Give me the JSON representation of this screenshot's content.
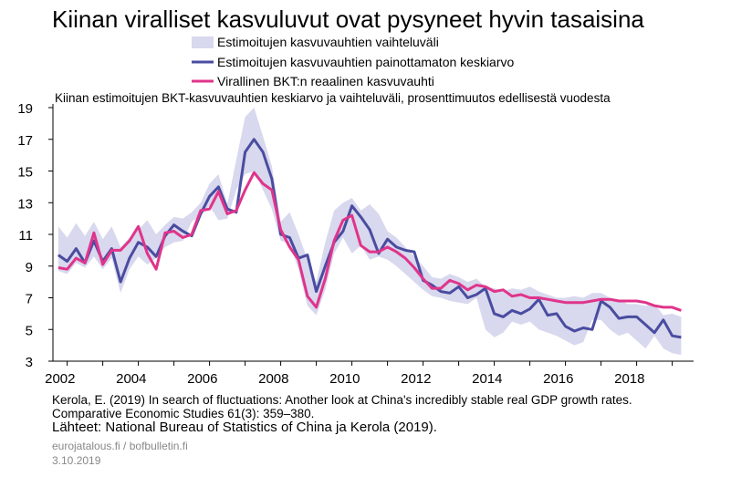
{
  "title": "Kiinan viralliset kasvuluvut ovat pysyneet hyvin tasaisina",
  "legend": [
    {
      "name": "Estimoitujen kasvuvauhtien vaihteluväli",
      "kind": "band"
    },
    {
      "name": "Estimoitujen kasvuvauhtien painottamaton keskiarvo",
      "kind": "line"
    },
    {
      "name": "Virallinen BKT:n reaalinen kasvuvauhti",
      "kind": "line"
    }
  ],
  "subtitle": "Kiinan estimoitujen BKT-kasvuvauhtien keskiarvo ja vaihteluväli, prosenttimuutos edellisestä vuodesta",
  "reference_line1": "Kerola, E. (2019) In search of fluctuations: Another look at China's incredibly stable real GDP growth rates.",
  "reference_line2": "Comparative Economic Studies 61(3): 359–380.",
  "sources": "Lähteet: National Bureau of Statistics of China ja Kerola (2019).",
  "footer_site": "eurojatalous.fi  / bofbulletin.fi",
  "footer_date": "3.10.2019",
  "colors": {
    "band": "#d8d8ee",
    "mean": "#4a4ca0",
    "official": "#e0348a",
    "axis": "#000000"
  },
  "chart_data": {
    "type": "line",
    "title": "Kiinan estimoitujen BKT-kasvuvauhtien keskiarvo ja vaihteluväli, prosenttimuutos edellisestä vuodesta",
    "xlabel": "",
    "ylabel": "",
    "x_ticks": [
      "2002",
      "2004",
      "2006",
      "2008",
      "2010",
      "2012",
      "2014",
      "2016",
      "2018"
    ],
    "y_ticks": [
      3,
      5,
      7,
      9,
      11,
      13,
      15,
      17,
      19
    ],
    "xlim": [
      2001.6,
      2019.6
    ],
    "ylim": [
      3,
      19
    ],
    "grid": false,
    "x": [
      2001.75,
      2002.0,
      2002.25,
      2002.5,
      2002.75,
      2003.0,
      2003.25,
      2003.5,
      2003.75,
      2004.0,
      2004.25,
      2004.5,
      2004.75,
      2005.0,
      2005.25,
      2005.5,
      2005.75,
      2006.0,
      2006.25,
      2006.5,
      2006.75,
      2007.0,
      2007.25,
      2007.5,
      2007.75,
      2008.0,
      2008.25,
      2008.5,
      2008.75,
      2009.0,
      2009.25,
      2009.5,
      2009.75,
      2010.0,
      2010.25,
      2010.5,
      2010.75,
      2011.0,
      2011.25,
      2011.5,
      2011.75,
      2012.0,
      2012.25,
      2012.5,
      2012.75,
      2013.0,
      2013.25,
      2013.5,
      2013.75,
      2014.0,
      2014.25,
      2014.5,
      2014.75,
      2015.0,
      2015.25,
      2015.5,
      2015.75,
      2016.0,
      2016.25,
      2016.5,
      2016.75,
      2017.0,
      2017.25,
      2017.5,
      2017.75,
      2018.0,
      2018.25,
      2018.5,
      2018.75,
      2019.0,
      2019.25
    ],
    "series": [
      {
        "name": "Estimoitujen kasvuvauhtien vaihteluväli",
        "kind": "band",
        "low": [
          8.7,
          8.5,
          9.2,
          8.9,
          9.6,
          8.8,
          9.5,
          7.3,
          8.8,
          9.6,
          9.1,
          9.5,
          10.2,
          10.5,
          10.6,
          11.8,
          12.2,
          12.8,
          11.9,
          12.0,
          13.8,
          14.8,
          15.0,
          13.8,
          12.6,
          10.6,
          10.4,
          8.8,
          6.5,
          5.9,
          7.5,
          9.8,
          10.8,
          9.8,
          10.3,
          9.4,
          9.6,
          9.4,
          9.0,
          8.5,
          8.0,
          7.5,
          7.1,
          7.0,
          6.8,
          6.7,
          6.6,
          7.0,
          5.0,
          4.5,
          4.8,
          5.5,
          5.3,
          5.5,
          5.0,
          4.8,
          4.6,
          4.3,
          4.0,
          4.2,
          5.6,
          5.6,
          5.0,
          4.6,
          4.8,
          4.3,
          3.8,
          4.6,
          3.8,
          3.5,
          3.4
        ],
        "high": [
          11.5,
          10.8,
          11.7,
          10.9,
          11.8,
          10.7,
          11.5,
          10.2,
          10.8,
          11.3,
          11.9,
          11.0,
          11.6,
          12.1,
          12.0,
          12.4,
          13.0,
          14.2,
          14.8,
          12.9,
          15.7,
          18.4,
          19.0,
          17.2,
          15.3,
          11.8,
          12.4,
          11.0,
          9.4,
          8.0,
          10.5,
          12.5,
          13.0,
          13.3,
          12.5,
          12.9,
          12.3,
          11.2,
          10.8,
          10.2,
          9.6,
          9.0,
          8.3,
          8.2,
          8.5,
          8.3,
          8.0,
          8.2,
          7.7,
          7.6,
          7.4,
          7.6,
          7.5,
          7.7,
          7.4,
          7.2,
          7.0,
          7.0,
          7.1,
          7.0,
          7.3,
          7.3,
          7.0,
          6.9,
          6.6,
          6.6,
          6.5,
          6.6,
          5.9,
          6.0,
          5.8
        ]
      },
      {
        "name": "Estimoitujen kasvuvauhtien painottamaton keskiarvo",
        "kind": "line",
        "values": [
          9.7,
          9.3,
          10.1,
          9.2,
          10.6,
          9.3,
          10.1,
          8.0,
          9.5,
          10.5,
          10.2,
          9.6,
          10.9,
          11.6,
          11.2,
          10.9,
          12.3,
          13.4,
          14.0,
          12.6,
          12.4,
          16.2,
          17.0,
          16.2,
          14.5,
          11.0,
          10.8,
          9.5,
          9.7,
          7.4,
          9.0,
          10.5,
          11.2,
          12.8,
          12.1,
          11.3,
          9.8,
          10.7,
          10.2,
          10.0,
          9.9,
          8.1,
          7.8,
          7.4,
          7.3,
          7.7,
          7.0,
          7.2,
          7.6,
          6.0,
          5.8,
          6.2,
          6.0,
          6.3,
          6.9,
          5.9,
          6.0,
          5.2,
          4.9,
          5.1,
          5.0,
          6.8,
          6.4,
          5.7,
          5.8,
          5.8,
          5.3,
          4.8,
          5.6,
          4.6,
          4.5
        ]
      },
      {
        "name": "Virallinen BKT:n reaalinen kasvuvauhti",
        "kind": "line",
        "values": [
          8.9,
          8.8,
          9.5,
          9.2,
          11.1,
          9.1,
          10.0,
          10.0,
          10.6,
          11.5,
          9.8,
          8.8,
          11.1,
          11.2,
          10.8,
          11.0,
          12.5,
          12.6,
          13.7,
          12.3,
          12.5,
          13.8,
          14.9,
          14.2,
          13.8,
          11.3,
          10.2,
          9.4,
          7.1,
          6.4,
          8.2,
          10.6,
          11.9,
          12.2,
          10.3,
          9.9,
          9.9,
          10.2,
          9.9,
          9.5,
          8.9,
          8.2,
          7.6,
          7.6,
          8.1,
          7.9,
          7.5,
          7.8,
          7.7,
          7.4,
          7.5,
          7.1,
          7.2,
          7.0,
          7.0,
          6.9,
          6.8,
          6.7,
          6.7,
          6.7,
          6.8,
          6.9,
          6.9,
          6.8,
          6.8,
          6.8,
          6.7,
          6.5,
          6.4,
          6.4,
          6.2
        ]
      }
    ]
  }
}
